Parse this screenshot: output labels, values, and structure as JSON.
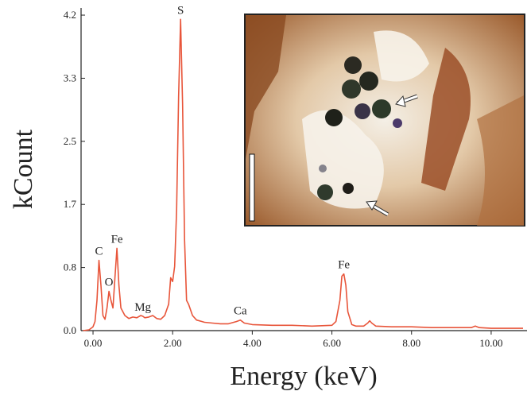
{
  "chart_data": {
    "type": "line",
    "x_label": "Energy (keV)",
    "y_label": "kCount",
    "xlim": [
      -0.3,
      10.9
    ],
    "ylim": [
      0,
      4.27
    ],
    "xticks": [
      {
        "value": 0,
        "label": "0.00"
      },
      {
        "value": 2,
        "label": "2.00"
      },
      {
        "value": 4,
        "label": "4.00"
      },
      {
        "value": 6,
        "label": "6.00"
      },
      {
        "value": 8,
        "label": "8.00"
      },
      {
        "value": 10,
        "label": "10.00"
      }
    ],
    "yticks": [
      {
        "value": 0,
        "label": "0.0"
      },
      {
        "value": 0.835,
        "label": "0.8"
      },
      {
        "value": 1.67,
        "label": "1.7"
      },
      {
        "value": 2.505,
        "label": "2.5"
      },
      {
        "value": 3.34,
        "label": "3.3"
      },
      {
        "value": 4.175,
        "label": "4.2"
      }
    ],
    "x": [
      -0.25,
      -0.1,
      0,
      0.05,
      0.1,
      0.15,
      0.2,
      0.25,
      0.3,
      0.35,
      0.4,
      0.45,
      0.5,
      0.55,
      0.6,
      0.65,
      0.7,
      0.8,
      0.9,
      1.0,
      1.1,
      1.2,
      1.25,
      1.3,
      1.4,
      1.5,
      1.6,
      1.7,
      1.8,
      1.9,
      1.95,
      2.0,
      2.05,
      2.1,
      2.15,
      2.2,
      2.25,
      2.3,
      2.35,
      2.4,
      2.5,
      2.6,
      2.8,
      3.0,
      3.2,
      3.4,
      3.6,
      3.7,
      3.8,
      4.0,
      4.5,
      5.0,
      5.5,
      6.0,
      6.1,
      6.2,
      6.25,
      6.3,
      6.35,
      6.4,
      6.5,
      6.6,
      6.8,
      6.9,
      6.95,
      7.0,
      7.1,
      7.5,
      8.0,
      8.5,
      9.0,
      9.5,
      9.6,
      9.7,
      10.0,
      10.5,
      10.8
    ],
    "series": [
      {
        "color": "#e8553a",
        "values": [
          0.0,
          0.01,
          0.05,
          0.12,
          0.4,
          0.93,
          0.6,
          0.2,
          0.15,
          0.3,
          0.52,
          0.4,
          0.3,
          0.7,
          1.09,
          0.6,
          0.3,
          0.2,
          0.16,
          0.18,
          0.17,
          0.2,
          0.19,
          0.17,
          0.18,
          0.2,
          0.16,
          0.15,
          0.2,
          0.35,
          0.7,
          0.65,
          0.85,
          1.6,
          3.1,
          4.12,
          3.0,
          1.2,
          0.4,
          0.35,
          0.2,
          0.14,
          0.11,
          0.1,
          0.09,
          0.09,
          0.12,
          0.14,
          0.1,
          0.08,
          0.07,
          0.07,
          0.06,
          0.07,
          0.12,
          0.4,
          0.72,
          0.75,
          0.6,
          0.25,
          0.08,
          0.06,
          0.06,
          0.1,
          0.13,
          0.1,
          0.06,
          0.05,
          0.05,
          0.04,
          0.04,
          0.04,
          0.06,
          0.04,
          0.03,
          0.03,
          0.03
        ]
      }
    ],
    "annotations": [
      {
        "text": "C",
        "x": 0.15
      },
      {
        "text": "O",
        "x": 0.4
      },
      {
        "text": "Fe",
        "x": 0.6
      },
      {
        "text": "Mg",
        "x": 1.25
      },
      {
        "text": "S",
        "x": 2.2
      },
      {
        "text": "Ca",
        "x": 3.7
      },
      {
        "text": "Fe",
        "x": 6.3
      }
    ]
  }
}
